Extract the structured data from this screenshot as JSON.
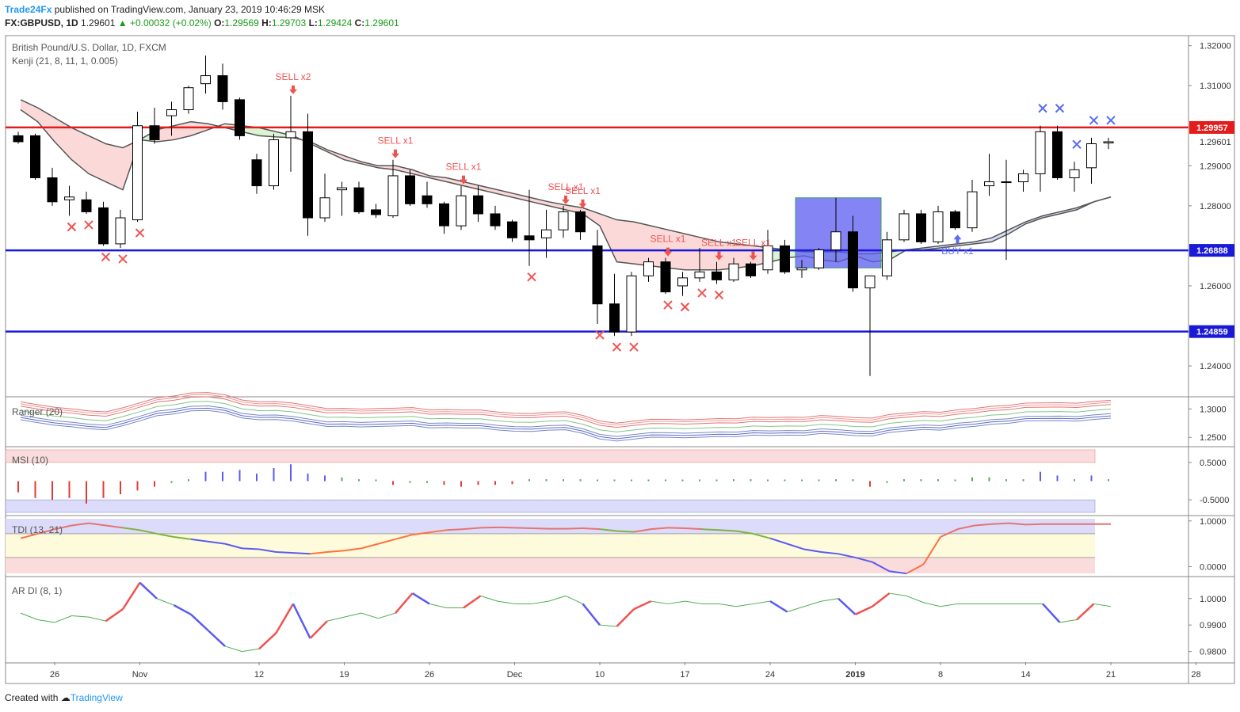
{
  "header": {
    "brand": "Trade24Fx",
    "published": " published on TradingView.com, January 23, 2019 10:46:29 MSK",
    "symbol": "FX:GBPUSD, 1D",
    "last": "1.29601",
    "change": "▲ +0.00032 (+0.02%)",
    "o_label": "O:",
    "o_val": "1.29569",
    "h_label": "H:",
    "h_val": "1.29703",
    "l_label": "L:",
    "l_val": "1.29424",
    "c_label": "C:",
    "c_val": "1.29601"
  },
  "legend": {
    "main_title": "British Pound/U.S. Dollar, 1D, FXCM",
    "main_indicator": "Kenji (21, 8, 11, 1, 0.005)",
    "ranger": "Ranger (20)",
    "msi": "MSI (10)",
    "tdi": "TDI (13, 21)",
    "ardi": "AR DI (8, 1)"
  },
  "footer": {
    "created": "Created with",
    "brand": "TradingView"
  },
  "colors": {
    "bull": "#ffffff",
    "bear": "#000000",
    "red_line": "#e31b1b",
    "blue_line": "#1a1ad6",
    "sell": "#ef5350",
    "buy": "#5b6cf0",
    "kenji_line": "#555555",
    "cloud_red": "#fbd9d9",
    "cloud_green": "#d9f5d4",
    "cloud_blue": "#d8dcf8",
    "box": "#5b5bf2"
  },
  "chart_data": [
    {
      "type": "candlestick",
      "title": "British Pound/U.S. Dollar, 1D, FXCM",
      "x_ticks": [
        "26",
        "Nov",
        "12",
        "19",
        "26",
        "Dec",
        "10",
        "17",
        "24",
        "2019",
        "8",
        "14",
        "21",
        "28"
      ],
      "y_ticks": [
        "1.32000",
        "1.31000",
        "1.29000",
        "1.28000",
        "1.26000",
        "1.24000"
      ],
      "ylim": [
        1.2325,
        1.3225
      ],
      "price_tags": [
        {
          "label": "1.29957",
          "value": 1.29957,
          "kind": "level-red"
        },
        {
          "label": "1.29601",
          "value": 1.29601,
          "kind": "last"
        },
        {
          "label": "1.26888",
          "value": 1.26888,
          "kind": "level-blue"
        },
        {
          "label": "1.24859",
          "value": 1.24859,
          "kind": "level-blue"
        }
      ],
      "levels": [
        1.29957,
        1.26888,
        1.24859
      ],
      "candles": [
        {
          "o": 1.2975,
          "h": 1.2985,
          "l": 1.2955,
          "c": 1.296
        },
        {
          "o": 1.2975,
          "h": 1.298,
          "l": 1.2865,
          "c": 1.287
        },
        {
          "o": 1.287,
          "h": 1.2895,
          "l": 1.28,
          "c": 1.281
        },
        {
          "o": 1.2815,
          "h": 1.285,
          "l": 1.2775,
          "c": 1.2822
        },
        {
          "o": 1.2815,
          "h": 1.2835,
          "l": 1.278,
          "c": 1.2785
        },
        {
          "o": 1.2795,
          "h": 1.281,
          "l": 1.27,
          "c": 1.2705
        },
        {
          "o": 1.2705,
          "h": 1.279,
          "l": 1.2695,
          "c": 1.277
        },
        {
          "o": 1.2765,
          "h": 1.3035,
          "l": 1.276,
          "c": 1.3
        },
        {
          "o": 1.3,
          "h": 1.3045,
          "l": 1.2955,
          "c": 1.2965
        },
        {
          "o": 1.3025,
          "h": 1.306,
          "l": 1.2975,
          "c": 1.304
        },
        {
          "o": 1.304,
          "h": 1.31,
          "l": 1.303,
          "c": 1.3095
        },
        {
          "o": 1.3105,
          "h": 1.3175,
          "l": 1.308,
          "c": 1.3125
        },
        {
          "o": 1.3125,
          "h": 1.3155,
          "l": 1.304,
          "c": 1.306
        },
        {
          "o": 1.3065,
          "h": 1.307,
          "l": 1.2965,
          "c": 1.2975
        },
        {
          "o": 1.2915,
          "h": 1.293,
          "l": 1.283,
          "c": 1.285
        },
        {
          "o": 1.285,
          "h": 1.298,
          "l": 1.284,
          "c": 1.2965
        },
        {
          "o": 1.297,
          "h": 1.3075,
          "l": 1.2885,
          "c": 1.2985
        },
        {
          "o": 1.2985,
          "h": 1.303,
          "l": 1.2725,
          "c": 1.277
        },
        {
          "o": 1.277,
          "h": 1.288,
          "l": 1.276,
          "c": 1.282
        },
        {
          "o": 1.284,
          "h": 1.286,
          "l": 1.2775,
          "c": 1.2845
        },
        {
          "o": 1.2845,
          "h": 1.286,
          "l": 1.278,
          "c": 1.2785
        },
        {
          "o": 1.279,
          "h": 1.2805,
          "l": 1.277,
          "c": 1.2778
        },
        {
          "o": 1.2775,
          "h": 1.2915,
          "l": 1.277,
          "c": 1.2875
        },
        {
          "o": 1.2875,
          "h": 1.289,
          "l": 1.28,
          "c": 1.2805
        },
        {
          "o": 1.2825,
          "h": 1.286,
          "l": 1.2795,
          "c": 1.2805
        },
        {
          "o": 1.2805,
          "h": 1.281,
          "l": 1.273,
          "c": 1.275
        },
        {
          "o": 1.275,
          "h": 1.285,
          "l": 1.274,
          "c": 1.2825
        },
        {
          "o": 1.2825,
          "h": 1.285,
          "l": 1.276,
          "c": 1.278
        },
        {
          "o": 1.278,
          "h": 1.28,
          "l": 1.274,
          "c": 1.275
        },
        {
          "o": 1.276,
          "h": 1.2765,
          "l": 1.271,
          "c": 1.272
        },
        {
          "o": 1.2725,
          "h": 1.284,
          "l": 1.265,
          "c": 1.2715
        },
        {
          "o": 1.272,
          "h": 1.279,
          "l": 1.267,
          "c": 1.274
        },
        {
          "o": 1.274,
          "h": 1.28,
          "l": 1.272,
          "c": 1.2785
        },
        {
          "o": 1.2785,
          "h": 1.279,
          "l": 1.2715,
          "c": 1.2735
        },
        {
          "o": 1.27,
          "h": 1.274,
          "l": 1.2505,
          "c": 1.2555
        },
        {
          "o": 1.2555,
          "h": 1.263,
          "l": 1.2475,
          "c": 1.2485
        },
        {
          "o": 1.2485,
          "h": 1.2635,
          "l": 1.2475,
          "c": 1.2625
        },
        {
          "o": 1.2625,
          "h": 1.267,
          "l": 1.261,
          "c": 1.266
        },
        {
          "o": 1.266,
          "h": 1.267,
          "l": 1.258,
          "c": 1.2585
        },
        {
          "o": 1.26,
          "h": 1.2635,
          "l": 1.2575,
          "c": 1.262
        },
        {
          "o": 1.262,
          "h": 1.2695,
          "l": 1.261,
          "c": 1.2635
        },
        {
          "o": 1.2635,
          "h": 1.266,
          "l": 1.2605,
          "c": 1.2615
        },
        {
          "o": 1.2615,
          "h": 1.267,
          "l": 1.261,
          "c": 1.2655
        },
        {
          "o": 1.2655,
          "h": 1.266,
          "l": 1.262,
          "c": 1.2625
        },
        {
          "o": 1.264,
          "h": 1.274,
          "l": 1.263,
          "c": 1.27
        },
        {
          "o": 1.27,
          "h": 1.2715,
          "l": 1.263,
          "c": 1.2635
        },
        {
          "o": 1.264,
          "h": 1.2665,
          "l": 1.262,
          "c": 1.2645
        },
        {
          "o": 1.2645,
          "h": 1.2695,
          "l": 1.264,
          "c": 1.269
        },
        {
          "o": 1.269,
          "h": 1.282,
          "l": 1.266,
          "c": 1.2735
        },
        {
          "o": 1.2735,
          "h": 1.2775,
          "l": 1.2585,
          "c": 1.2595
        },
        {
          "o": 1.2595,
          "h": 1.2625,
          "l": 1.2375,
          "c": 1.2625
        },
        {
          "o": 1.2625,
          "h": 1.2735,
          "l": 1.2615,
          "c": 1.2715
        },
        {
          "o": 1.2715,
          "h": 1.279,
          "l": 1.271,
          "c": 1.278
        },
        {
          "o": 1.278,
          "h": 1.279,
          "l": 1.2705,
          "c": 1.271
        },
        {
          "o": 1.271,
          "h": 1.28,
          "l": 1.2705,
          "c": 1.2785
        },
        {
          "o": 1.2785,
          "h": 1.279,
          "l": 1.274,
          "c": 1.2745
        },
        {
          "o": 1.2745,
          "h": 1.2865,
          "l": 1.2735,
          "c": 1.2835
        },
        {
          "o": 1.285,
          "h": 1.293,
          "l": 1.2825,
          "c": 1.286
        },
        {
          "o": 1.286,
          "h": 1.2915,
          "l": 1.2665,
          "c": 1.286
        },
        {
          "o": 1.286,
          "h": 1.289,
          "l": 1.2835,
          "c": 1.288
        },
        {
          "o": 1.288,
          "h": 1.3,
          "l": 1.2835,
          "c": 1.2985
        },
        {
          "o": 1.2985,
          "h": 1.3,
          "l": 1.2865,
          "c": 1.287
        },
        {
          "o": 1.287,
          "h": 1.291,
          "l": 1.2835,
          "c": 1.289
        },
        {
          "o": 1.2895,
          "h": 1.297,
          "l": 1.2855,
          "c": 1.2955
        },
        {
          "o": 1.2957,
          "h": 1.297,
          "l": 1.2942,
          "c": 1.296
        }
      ],
      "kenji_upper": [
        1.3065,
        1.3045,
        1.302,
        1.2995,
        1.2975,
        1.2955,
        1.2945,
        1.2965,
        1.299,
        1.3,
        1.301,
        1.3005,
        1.2995,
        1.2985,
        1.2975,
        1.2972,
        1.297,
        1.296,
        1.294,
        1.2925,
        1.291,
        1.29,
        1.29,
        1.289,
        1.2875,
        1.287,
        1.286,
        1.285,
        1.284,
        1.283,
        1.282,
        1.281,
        1.2802,
        1.2795,
        1.278,
        1.2765,
        1.276,
        1.275,
        1.274,
        1.273,
        1.272,
        1.271,
        1.2705,
        1.27,
        1.2695,
        1.269,
        1.2685,
        1.2685,
        1.2685,
        1.268,
        1.268,
        1.2685,
        1.269,
        1.2695,
        1.27,
        1.2705,
        1.271,
        1.272,
        1.274,
        1.276,
        1.2775,
        1.2785,
        1.2795,
        1.281,
        1.2822
      ],
      "kenji_lower": [
        1.304,
        1.301,
        1.296,
        1.2915,
        1.288,
        1.286,
        1.284,
        1.2965,
        1.296,
        1.2965,
        1.2975,
        1.299,
        1.3005,
        1.3,
        1.2995,
        1.2985,
        1.2975,
        1.2955,
        1.2935,
        1.2915,
        1.2905,
        1.2895,
        1.289,
        1.288,
        1.287,
        1.286,
        1.285,
        1.284,
        1.283,
        1.282,
        1.281,
        1.28,
        1.279,
        1.278,
        1.275,
        1.266,
        1.2655,
        1.265,
        1.2645,
        1.264,
        1.264,
        1.264,
        1.2645,
        1.265,
        1.266,
        1.267,
        1.2675,
        1.2665,
        1.266,
        1.2675,
        1.266,
        1.2665,
        1.269,
        1.269,
        1.2695,
        1.27,
        1.2705,
        1.271,
        1.273,
        1.2755,
        1.277,
        1.278,
        1.279,
        1.281,
        1.2822
      ],
      "signals": [
        {
          "label": "SELL x2",
          "bar": 16
        },
        {
          "label": "SELL x1",
          "bar": 22
        },
        {
          "label": "SELL x1",
          "bar": 26
        },
        {
          "label": "SELL x1",
          "bar": 32
        },
        {
          "label": "SELL x1",
          "bar": 33
        },
        {
          "label": "SELL x1",
          "bar": 38
        },
        {
          "label": "SELL x1",
          "bar": 41
        },
        {
          "label": "SELL x1",
          "bar": 43
        },
        {
          "label": "BUY x1",
          "bar": 55
        }
      ]
    },
    {
      "type": "line",
      "title": "Ranger (20)",
      "y_ticks": [
        "1.3000",
        "1.2500"
      ],
      "ylim": [
        1.235,
        1.32
      ]
    },
    {
      "type": "bar",
      "title": "MSI (10)",
      "y_ticks": [
        "0.5000",
        "-0.5000"
      ],
      "ylim": [
        -0.9,
        0.9
      ],
      "values": [
        -0.3,
        -0.45,
        -0.5,
        -0.45,
        -0.6,
        -0.45,
        -0.35,
        -0.25,
        -0.15,
        -0.05,
        0.05,
        0.25,
        0.25,
        0.3,
        0.2,
        0.35,
        0.45,
        0.2,
        0.15,
        0.1,
        0.05,
        0,
        -0.1,
        -0.05,
        -0.05,
        -0.1,
        -0.15,
        -0.1,
        -0.1,
        -0.08,
        0.05,
        0.05,
        0.05,
        0.05,
        0.03,
        0,
        0,
        0,
        0,
        0,
        0,
        0,
        0.05,
        0.05,
        0,
        0,
        0,
        0,
        0.05,
        0.05,
        -0.15,
        -0.05,
        0.05,
        0.05,
        0.05,
        0,
        0.1,
        0.1,
        0.05,
        0.05,
        0.25,
        0.15,
        0.05,
        0.15,
        0.05
      ]
    },
    {
      "type": "line",
      "title": "TDI (13, 21)",
      "y_ticks": [
        "1.0000",
        "0.0000"
      ],
      "ylim": [
        -0.2,
        1.1
      ],
      "values": [
        0.62,
        0.72,
        0.82,
        0.9,
        0.95,
        0.9,
        0.85,
        0.8,
        0.72,
        0.65,
        0.6,
        0.55,
        0.5,
        0.4,
        0.38,
        0.32,
        0.3,
        0.28,
        0.32,
        0.35,
        0.4,
        0.5,
        0.6,
        0.7,
        0.75,
        0.8,
        0.82,
        0.85,
        0.86,
        0.85,
        0.84,
        0.83,
        0.83,
        0.84,
        0.82,
        0.78,
        0.76,
        0.82,
        0.85,
        0.84,
        0.82,
        0.8,
        0.78,
        0.72,
        0.62,
        0.5,
        0.38,
        0.32,
        0.28,
        0.2,
        0.1,
        -0.1,
        -0.15,
        0.05,
        0.65,
        0.82,
        0.9,
        0.93,
        0.95,
        0.92,
        0.93,
        0.93,
        0.93,
        0.93,
        0.93
      ]
    },
    {
      "type": "line",
      "title": "AR DI (8, 1)",
      "y_ticks": [
        "1.0000",
        "0.9900",
        "0.9800"
      ],
      "ylim": [
        0.976,
        1.008
      ],
      "values": [
        0.9945,
        0.992,
        0.991,
        0.9935,
        0.993,
        0.9915,
        0.996,
        1.006,
        1.0,
        0.9975,
        0.994,
        0.988,
        0.982,
        0.98,
        0.981,
        0.987,
        0.998,
        0.985,
        0.9915,
        0.993,
        0.9945,
        0.9925,
        0.9945,
        1.002,
        0.998,
        0.9965,
        0.9965,
        1.001,
        0.999,
        0.998,
        0.998,
        0.999,
        1.001,
        0.998,
        0.99,
        0.9895,
        0.996,
        0.999,
        0.998,
        0.999,
        0.998,
        0.998,
        0.997,
        0.998,
        0.999,
        0.995,
        0.997,
        0.999,
        1.0,
        0.994,
        0.997,
        1.002,
        1.001,
        0.9985,
        0.997,
        0.998,
        0.998,
        0.998,
        0.998,
        0.998,
        0.998,
        0.991,
        0.992,
        0.998,
        0.997
      ]
    }
  ]
}
